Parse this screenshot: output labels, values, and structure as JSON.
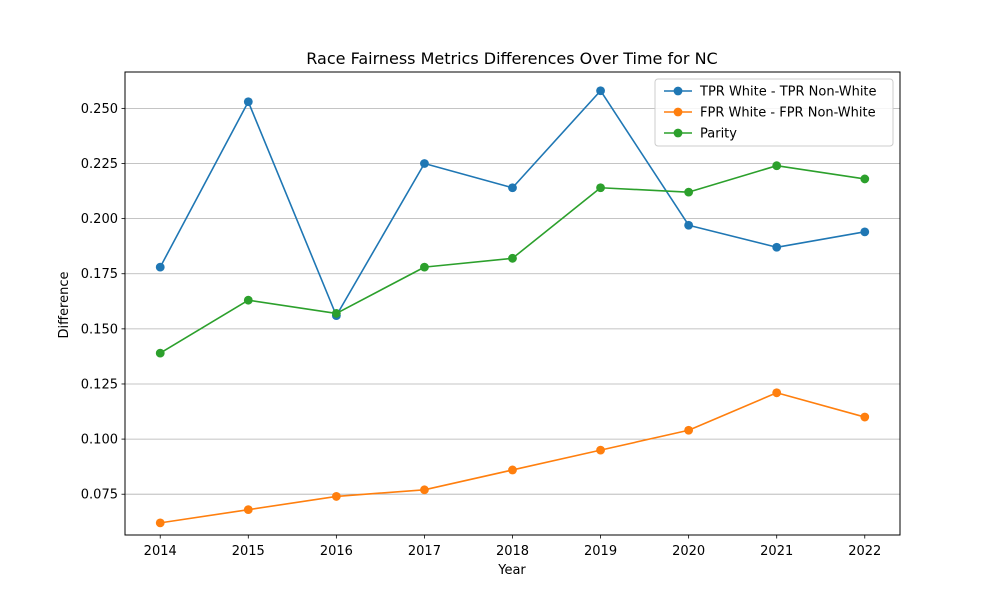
{
  "chart_data": {
    "type": "line",
    "title": "Race Fairness Metrics Differences Over Time for NC",
    "xlabel": "Year",
    "ylabel": "Difference",
    "x": [
      2014,
      2015,
      2016,
      2017,
      2018,
      2019,
      2020,
      2021,
      2022
    ],
    "xlim": [
      2013.6,
      2022.4
    ],
    "ylim": [
      0.0565,
      0.2665
    ],
    "yticks": [
      0.075,
      0.1,
      0.125,
      0.15,
      0.175,
      0.2,
      0.225,
      0.25
    ],
    "ytick_labels": [
      "0.075",
      "0.100",
      "0.125",
      "0.150",
      "0.175",
      "0.200",
      "0.225",
      "0.250"
    ],
    "xtick_labels": [
      "2014",
      "2015",
      "2016",
      "2017",
      "2018",
      "2019",
      "2020",
      "2021",
      "2022"
    ],
    "grid": "y",
    "legend_position": "top-right",
    "series": [
      {
        "name": "TPR White - TPR Non-White",
        "color": "#1f77b4",
        "values": [
          0.178,
          0.253,
          0.156,
          0.225,
          0.214,
          0.258,
          0.197,
          0.187,
          0.194
        ]
      },
      {
        "name": "FPR White - FPR Non-White",
        "color": "#ff7f0e",
        "values": [
          0.062,
          0.068,
          0.074,
          0.077,
          0.086,
          0.095,
          0.104,
          0.121,
          0.11
        ]
      },
      {
        "name": "Parity",
        "color": "#2ca02c",
        "values": [
          0.139,
          0.163,
          0.157,
          0.178,
          0.182,
          0.214,
          0.212,
          0.224,
          0.218
        ]
      }
    ]
  }
}
